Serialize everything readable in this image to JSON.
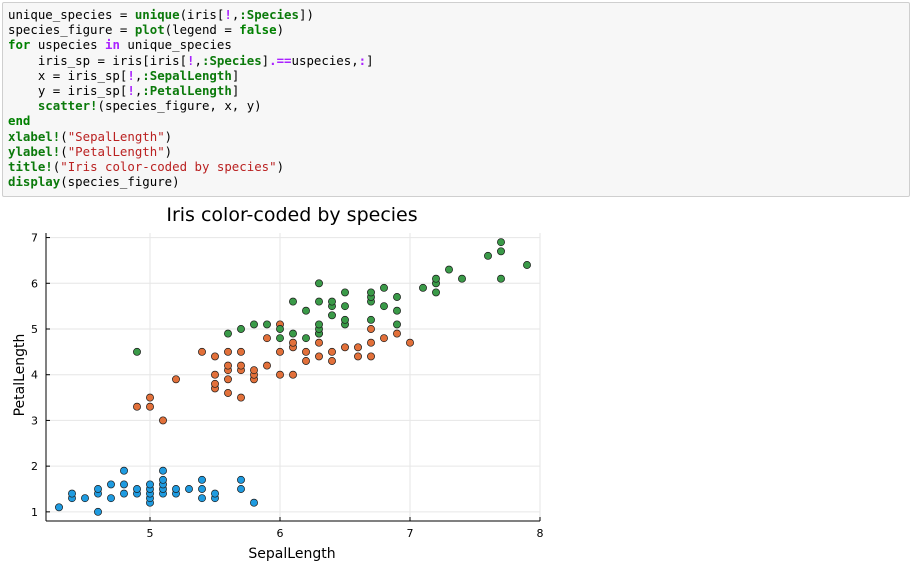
{
  "code_cell": {
    "lines": [
      [
        {
          "t": "unique_species = "
        },
        {
          "t": "unique",
          "c": "fn"
        },
        {
          "t": "(iris["
        },
        {
          "t": "!",
          "c": "op"
        },
        {
          "t": ","
        },
        {
          "t": ":Species",
          "c": "sym"
        },
        {
          "t": "])"
        }
      ],
      [
        {
          "t": "species_figure = "
        },
        {
          "t": "plot",
          "c": "fn"
        },
        {
          "t": "(legend = "
        },
        {
          "t": "false",
          "c": "kw"
        },
        {
          "t": ")"
        }
      ],
      [
        {
          "t": "for",
          "c": "kw"
        },
        {
          "t": " uspecies "
        },
        {
          "t": "in",
          "c": "op"
        },
        {
          "t": " unique_species"
        }
      ],
      [
        {
          "t": "    iris_sp = iris[iris["
        },
        {
          "t": "!",
          "c": "op"
        },
        {
          "t": ","
        },
        {
          "t": ":Species",
          "c": "sym"
        },
        {
          "t": "]"
        },
        {
          "t": ".==",
          "c": "op"
        },
        {
          "t": "uspecies,"
        },
        {
          "t": ":",
          "c": "op"
        },
        {
          "t": "]"
        }
      ],
      [
        {
          "t": "    x = iris_sp["
        },
        {
          "t": "!",
          "c": "op"
        },
        {
          "t": ","
        },
        {
          "t": ":SepalLength",
          "c": "sym"
        },
        {
          "t": "]"
        }
      ],
      [
        {
          "t": "    y = iris_sp["
        },
        {
          "t": "!",
          "c": "op"
        },
        {
          "t": ","
        },
        {
          "t": ":PetalLength",
          "c": "sym"
        },
        {
          "t": "]"
        }
      ],
      [
        {
          "t": "    "
        },
        {
          "t": "scatter!",
          "c": "fn"
        },
        {
          "t": "(species_figure, x, y)"
        }
      ],
      [
        {
          "t": "end",
          "c": "kw"
        }
      ],
      [
        {
          "t": "xlabel!",
          "c": "fn"
        },
        {
          "t": "("
        },
        {
          "t": "\"SepalLength\"",
          "c": "str"
        },
        {
          "t": ")"
        }
      ],
      [
        {
          "t": "ylabel!",
          "c": "fn"
        },
        {
          "t": "("
        },
        {
          "t": "\"PetalLength\"",
          "c": "str"
        },
        {
          "t": ")"
        }
      ],
      [
        {
          "t": "title!",
          "c": "fn"
        },
        {
          "t": "("
        },
        {
          "t": "\"Iris color-coded by species\"",
          "c": "str"
        },
        {
          "t": ")"
        }
      ],
      [
        {
          "t": "display",
          "c": "fn"
        },
        {
          "t": "(species_figure)"
        }
      ]
    ]
  },
  "chart_data": {
    "type": "scatter",
    "title": "Iris color-coded by species",
    "xlabel": "SepalLength",
    "ylabel": "PetalLength",
    "xlim": [
      4.2,
      8.0
    ],
    "ylim": [
      0.8,
      7.1
    ],
    "xticks": [
      5,
      6,
      7,
      8
    ],
    "yticks": [
      1,
      2,
      3,
      4,
      5,
      6,
      7
    ],
    "grid": true,
    "legend": false,
    "series": [
      {
        "color": "#1f9be0",
        "points": [
          [
            4.3,
            1.1
          ],
          [
            4.4,
            1.3
          ],
          [
            4.4,
            1.4
          ],
          [
            4.5,
            1.3
          ],
          [
            4.6,
            1.0
          ],
          [
            4.6,
            1.4
          ],
          [
            4.6,
            1.5
          ],
          [
            4.7,
            1.3
          ],
          [
            4.7,
            1.6
          ],
          [
            4.8,
            1.4
          ],
          [
            4.8,
            1.6
          ],
          [
            4.8,
            1.9
          ],
          [
            4.9,
            1.4
          ],
          [
            4.9,
            1.5
          ],
          [
            5.0,
            1.2
          ],
          [
            5.0,
            1.3
          ],
          [
            5.0,
            1.4
          ],
          [
            5.0,
            1.5
          ],
          [
            5.0,
            1.6
          ],
          [
            5.1,
            1.4
          ],
          [
            5.1,
            1.5
          ],
          [
            5.1,
            1.6
          ],
          [
            5.1,
            1.7
          ],
          [
            5.1,
            1.9
          ],
          [
            5.2,
            1.4
          ],
          [
            5.2,
            1.5
          ],
          [
            5.3,
            1.5
          ],
          [
            5.4,
            1.3
          ],
          [
            5.4,
            1.5
          ],
          [
            5.4,
            1.7
          ],
          [
            5.5,
            1.3
          ],
          [
            5.5,
            1.4
          ],
          [
            5.7,
            1.5
          ],
          [
            5.7,
            1.7
          ],
          [
            5.8,
            1.2
          ]
        ]
      },
      {
        "color": "#e2703a",
        "points": [
          [
            4.9,
            3.3
          ],
          [
            5.0,
            3.3
          ],
          [
            5.0,
            3.5
          ],
          [
            5.1,
            3.0
          ],
          [
            5.2,
            3.9
          ],
          [
            5.4,
            4.5
          ],
          [
            5.5,
            3.7
          ],
          [
            5.5,
            3.8
          ],
          [
            5.5,
            4.0
          ],
          [
            5.5,
            4.4
          ],
          [
            5.6,
            3.6
          ],
          [
            5.6,
            3.9
          ],
          [
            5.6,
            4.1
          ],
          [
            5.6,
            4.2
          ],
          [
            5.6,
            4.5
          ],
          [
            5.7,
            3.5
          ],
          [
            5.7,
            4.1
          ],
          [
            5.7,
            4.2
          ],
          [
            5.7,
            4.5
          ],
          [
            5.8,
            3.9
          ],
          [
            5.8,
            4.0
          ],
          [
            5.8,
            4.1
          ],
          [
            5.9,
            4.2
          ],
          [
            5.9,
            4.8
          ],
          [
            6.0,
            4.0
          ],
          [
            6.0,
            4.5
          ],
          [
            6.0,
            5.1
          ],
          [
            6.1,
            4.0
          ],
          [
            6.1,
            4.6
          ],
          [
            6.1,
            4.7
          ],
          [
            6.2,
            4.3
          ],
          [
            6.2,
            4.5
          ],
          [
            6.3,
            4.4
          ],
          [
            6.3,
            4.7
          ],
          [
            6.3,
            4.9
          ],
          [
            6.4,
            4.3
          ],
          [
            6.4,
            4.5
          ],
          [
            6.5,
            4.6
          ],
          [
            6.6,
            4.4
          ],
          [
            6.6,
            4.6
          ],
          [
            6.7,
            4.4
          ],
          [
            6.7,
            4.7
          ],
          [
            6.7,
            5.0
          ],
          [
            6.8,
            4.8
          ],
          [
            6.9,
            4.9
          ],
          [
            7.0,
            4.7
          ]
        ]
      },
      {
        "color": "#3a9a48",
        "points": [
          [
            4.9,
            4.5
          ],
          [
            5.6,
            4.9
          ],
          [
            5.7,
            5.0
          ],
          [
            5.8,
            5.1
          ],
          [
            5.9,
            5.1
          ],
          [
            6.0,
            4.8
          ],
          [
            6.0,
            5.0
          ],
          [
            6.1,
            4.9
          ],
          [
            6.1,
            5.6
          ],
          [
            6.2,
            4.8
          ],
          [
            6.2,
            5.4
          ],
          [
            6.3,
            4.9
          ],
          [
            6.3,
            5.0
          ],
          [
            6.3,
            5.1
          ],
          [
            6.3,
            5.6
          ],
          [
            6.3,
            6.0
          ],
          [
            6.4,
            5.3
          ],
          [
            6.4,
            5.5
          ],
          [
            6.4,
            5.6
          ],
          [
            6.5,
            5.1
          ],
          [
            6.5,
            5.2
          ],
          [
            6.5,
            5.5
          ],
          [
            6.5,
            5.8
          ],
          [
            6.7,
            5.2
          ],
          [
            6.7,
            5.6
          ],
          [
            6.7,
            5.7
          ],
          [
            6.7,
            5.8
          ],
          [
            6.8,
            5.5
          ],
          [
            6.8,
            5.9
          ],
          [
            6.9,
            5.1
          ],
          [
            6.9,
            5.4
          ],
          [
            6.9,
            5.7
          ],
          [
            7.1,
            5.9
          ],
          [
            7.2,
            5.8
          ],
          [
            7.2,
            6.0
          ],
          [
            7.2,
            6.1
          ],
          [
            7.3,
            6.3
          ],
          [
            7.4,
            6.1
          ],
          [
            7.6,
            6.6
          ],
          [
            7.7,
            6.1
          ],
          [
            7.7,
            6.7
          ],
          [
            7.7,
            6.9
          ],
          [
            7.9,
            6.4
          ]
        ]
      }
    ]
  }
}
